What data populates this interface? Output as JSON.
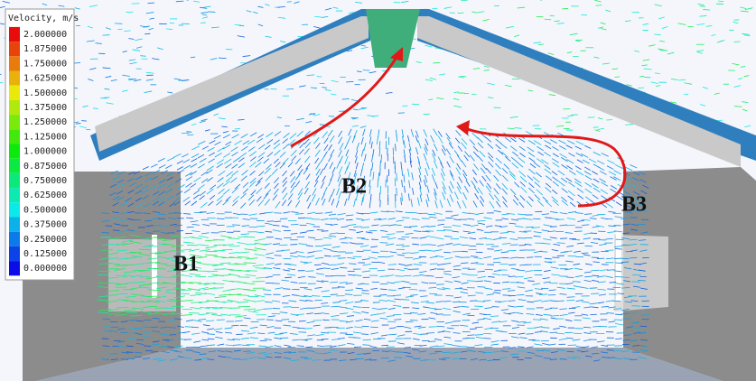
{
  "legend": {
    "title": "Velocity, m/s",
    "labels": [
      "2.000000",
      "1.875000",
      "1.750000",
      "1.625000",
      "1.500000",
      "1.375000",
      "1.250000",
      "1.125000",
      "1.000000",
      "0.875000",
      "0.750000",
      "0.625000",
      "0.500000",
      "0.375000",
      "0.250000",
      "0.125000",
      "0.000000"
    ]
  },
  "annotations": [
    "B1",
    "B2",
    "B3"
  ]
}
